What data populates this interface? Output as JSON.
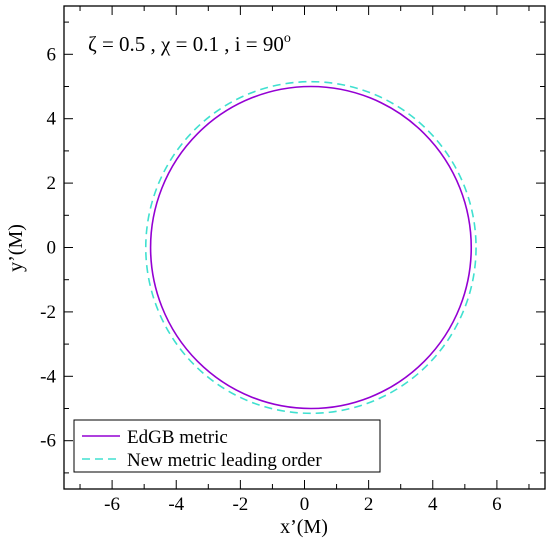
{
  "chart_data": {
    "type": "line",
    "annotation": {
      "text": "ζ = 0.5 , χ = 0.1 , i = 90",
      "superscript": "o"
    },
    "xlabel": "x’(M)",
    "ylabel": "y’(M)",
    "xlim": [
      -7.5,
      7.5
    ],
    "ylim": [
      -7.5,
      7.5
    ],
    "xticks": [
      -6,
      -4,
      -2,
      0,
      2,
      4,
      6
    ],
    "yticks": [
      -6,
      -4,
      -2,
      0,
      2,
      4,
      6
    ],
    "xtick_labels": [
      "-6",
      "-4",
      "-2",
      "0",
      "2",
      "4",
      "6"
    ],
    "ytick_labels": [
      "-6",
      "-4",
      "-2",
      "0",
      "2",
      "4",
      "6"
    ],
    "grid": false,
    "legend_position": "bottom-left",
    "series": [
      {
        "name": "EdGB metric",
        "color": "#9400d3",
        "style": "solid",
        "shape": "closed-curve",
        "center": [
          0.2,
          0.0
        ],
        "x_extent": [
          -4.8,
          5.2
        ],
        "y_extent": [
          -5.0,
          5.0
        ]
      },
      {
        "name": "New metric leading order",
        "color": "#40e0d0",
        "style": "dashed",
        "shape": "closed-curve",
        "center": [
          0.2,
          0.0
        ],
        "x_extent": [
          -4.95,
          5.35
        ],
        "y_extent": [
          -5.15,
          5.15
        ]
      }
    ]
  }
}
